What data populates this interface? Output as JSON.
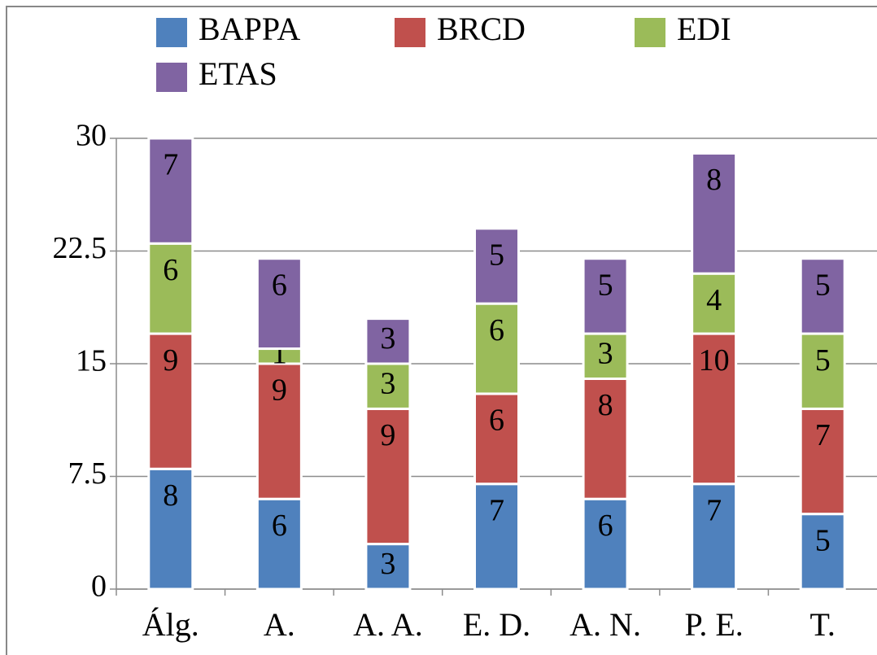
{
  "chart_data": {
    "type": "stacked-bar",
    "categories": [
      "Álg.",
      "A.",
      "A. A.",
      "E. D.",
      "A. N.",
      "P. E.",
      "T."
    ],
    "series": [
      {
        "name": "BAPPA",
        "color": "#4f81bd",
        "values": [
          8,
          6,
          3,
          7,
          6,
          7,
          5
        ]
      },
      {
        "name": "BRCD",
        "color": "#c0504d",
        "values": [
          9,
          9,
          9,
          6,
          8,
          10,
          7
        ]
      },
      {
        "name": "EDI",
        "color": "#9bbb59",
        "values": [
          6,
          1,
          3,
          6,
          3,
          4,
          5
        ]
      },
      {
        "name": "ETAS",
        "color": "#8064a2",
        "values": [
          7,
          6,
          3,
          5,
          5,
          8,
          5
        ]
      }
    ],
    "ylim": [
      0,
      30
    ],
    "yticks": [
      0,
      {
        "value": 7.5,
        "label": "7.5"
      },
      15,
      {
        "value": 22.5,
        "label": "22.5"
      },
      30
    ],
    "grid": true
  }
}
